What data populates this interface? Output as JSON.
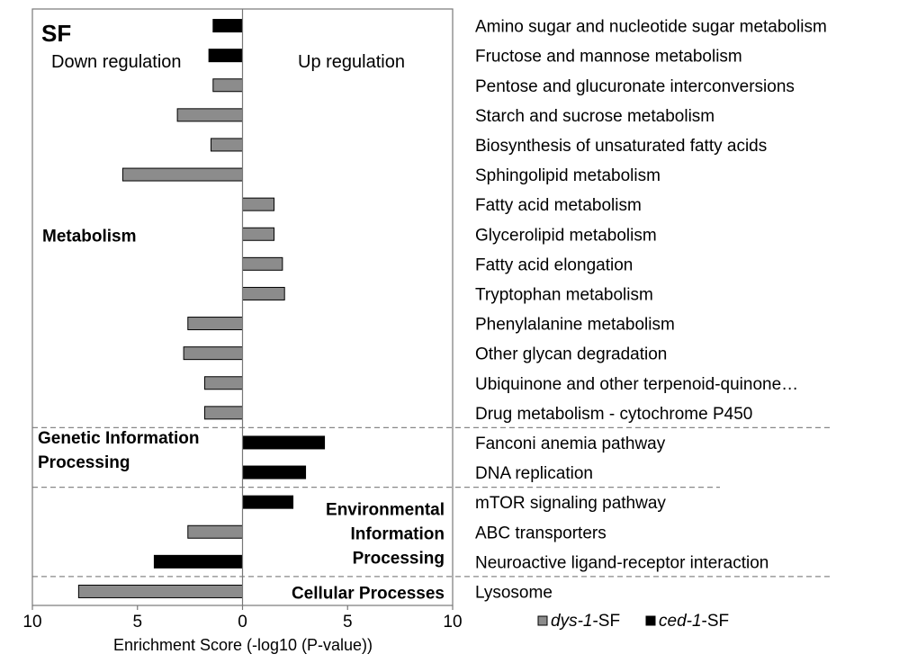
{
  "chart_data": {
    "type": "bar",
    "orientation": "horizontal",
    "panel_label": "SF",
    "direction_labels": {
      "left": "Down regulation",
      "right": "Up regulation"
    },
    "xlabel": "Enrichment Score (-log10 (P-value))",
    "xlim": [
      -10,
      10
    ],
    "xticks": [
      -10,
      -5,
      0,
      5,
      10
    ],
    "xtick_labels": [
      "10",
      "5",
      "0",
      "5",
      "10"
    ],
    "grid": false,
    "legend_position": "bottom-right",
    "series": [
      {
        "name": "dys-1-SF",
        "name_italic": "dys-1",
        "name_suffix": "-SF",
        "color": "#8c8c8c"
      },
      {
        "name": "ced-1-SF",
        "name_italic": "ced-1",
        "name_suffix": "-SF",
        "color": "#000000"
      }
    ],
    "categories": [
      "Amino sugar and nucleotide sugar metabolism",
      "Fructose and mannose metabolism",
      "Pentose and glucuronate interconversions",
      "Starch and sucrose metabolism",
      "Biosynthesis of unsaturated fatty acids",
      "Sphingolipid metabolism",
      "Fatty acid metabolism",
      "Glycerolipid metabolism",
      "Fatty acid elongation",
      "Tryptophan metabolism",
      "Phenylalanine metabolism",
      "Other glycan degradation",
      "Ubiquinone and other terpenoid-quinone…",
      "Drug metabolism - cytochrome P450",
      "Fanconi anemia pathway",
      "DNA replication",
      "mTOR signaling pathway",
      "ABC transporters",
      "Neuroactive ligand-receptor interaction",
      "Lysosome"
    ],
    "bars": [
      {
        "value": -1.4,
        "series": "ced-1-SF"
      },
      {
        "value": -1.6,
        "series": "ced-1-SF"
      },
      {
        "value": -1.4,
        "series": "dys-1-SF"
      },
      {
        "value": -3.1,
        "series": "dys-1-SF"
      },
      {
        "value": -1.5,
        "series": "dys-1-SF"
      },
      {
        "value": -5.7,
        "series": "dys-1-SF"
      },
      {
        "value": 1.5,
        "series": "dys-1-SF"
      },
      {
        "value": 1.5,
        "series": "dys-1-SF"
      },
      {
        "value": 1.9,
        "series": "dys-1-SF"
      },
      {
        "value": 2.0,
        "series": "dys-1-SF"
      },
      {
        "value": -2.6,
        "series": "dys-1-SF"
      },
      {
        "value": -2.8,
        "series": "dys-1-SF"
      },
      {
        "value": -1.8,
        "series": "dys-1-SF"
      },
      {
        "value": -1.8,
        "series": "dys-1-SF"
      },
      {
        "value": 3.9,
        "series": "ced-1-SF"
      },
      {
        "value": 3.0,
        "series": "ced-1-SF"
      },
      {
        "value": 2.4,
        "series": "ced-1-SF"
      },
      {
        "value": -2.6,
        "series": "dys-1-SF"
      },
      {
        "value": -4.2,
        "series": "ced-1-SF"
      },
      {
        "value": -7.8,
        "series": "dys-1-SF"
      }
    ],
    "groups": [
      {
        "label_lines": [
          "Metabolism"
        ],
        "first_index": 0,
        "last_index": 13,
        "label_side": "left"
      },
      {
        "label_lines": [
          "Genetic  Information",
          "Processing"
        ],
        "first_index": 14,
        "last_index": 15,
        "label_side": "left"
      },
      {
        "label_lines": [
          "Environmental",
          "Information",
          "Processing"
        ],
        "first_index": 16,
        "last_index": 18,
        "label_side": "right"
      },
      {
        "label_lines": [
          "Cellular Processes"
        ],
        "first_index": 19,
        "last_index": 19,
        "label_side": "right"
      }
    ]
  }
}
